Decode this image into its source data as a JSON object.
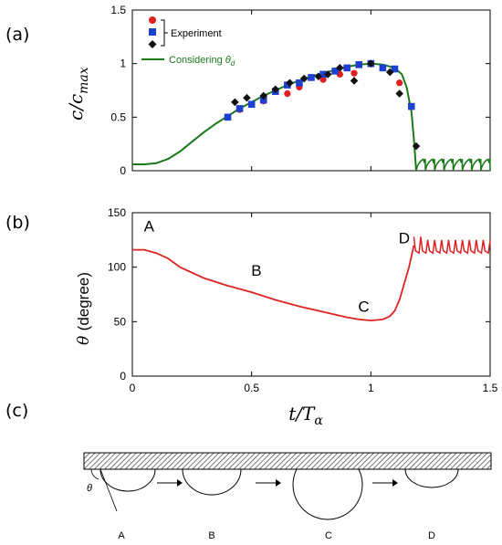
{
  "panels": {
    "a": "(a)",
    "b": "(b)",
    "c": "(c)"
  },
  "colors": {
    "experiment_red": "#e02020",
    "experiment_blue": "#1f3fd0",
    "experiment_black": "#111111",
    "theory_green": "#1a7a1a",
    "theta_red": "#dd2222"
  },
  "shared_x_label": {
    "main": "t/T",
    "sub": "α"
  },
  "chart_data": [
    {
      "type": "scatter",
      "ylabel": {
        "main": "c/c",
        "sub": "max"
      },
      "xlim": [
        0,
        1.5
      ],
      "ylim": [
        0,
        1.5
      ],
      "x_ticks": [
        0,
        0.5,
        1,
        1.5
      ],
      "y_ticks": [
        "0",
        "0.5",
        "1",
        "1.5"
      ],
      "legend_position": "top-center",
      "legend": {
        "experiment": "Experiment",
        "considering": "Considering",
        "theta_symbol": "θ",
        "theta_sub": "d"
      },
      "series": [
        {
          "name": "Experiment",
          "marker": "circle",
          "color": "#e02020",
          "x": [
            0.45,
            0.55,
            0.65,
            0.7,
            0.8,
            0.87,
            0.93,
            1.0,
            1.12
          ],
          "y": [
            0.57,
            0.65,
            0.72,
            0.78,
            0.85,
            0.9,
            0.91,
            1.0,
            0.82
          ]
        },
        {
          "name": "Experiment",
          "marker": "square",
          "color": "#1f3fd0",
          "x": [
            0.4,
            0.45,
            0.5,
            0.55,
            0.6,
            0.65,
            0.7,
            0.75,
            0.8,
            0.85,
            0.9,
            0.95,
            1.0,
            1.05,
            1.1,
            1.17
          ],
          "y": [
            0.5,
            0.58,
            0.62,
            0.66,
            0.74,
            0.8,
            0.82,
            0.87,
            0.9,
            0.93,
            0.96,
            0.99,
            1.0,
            0.96,
            0.95,
            0.6
          ]
        },
        {
          "name": "Experiment",
          "marker": "diamond",
          "color": "#111111",
          "x": [
            0.43,
            0.48,
            0.55,
            0.6,
            0.66,
            0.72,
            0.78,
            0.82,
            0.87,
            0.93,
            1.0,
            1.08,
            1.12,
            1.19
          ],
          "y": [
            0.64,
            0.68,
            0.7,
            0.76,
            0.82,
            0.86,
            0.88,
            0.9,
            0.96,
            0.84,
            1.0,
            0.92,
            0.72,
            0.23
          ]
        },
        {
          "name": "Considering θd",
          "type": "line",
          "color": "#1a7a1a",
          "x": [
            0,
            0.05,
            0.1,
            0.15,
            0.2,
            0.25,
            0.3,
            0.35,
            0.4,
            0.45,
            0.5,
            0.55,
            0.6,
            0.65,
            0.7,
            0.75,
            0.8,
            0.85,
            0.9,
            0.95,
            1.0,
            1.05,
            1.1,
            1.13,
            1.15,
            1.17,
            1.18,
            1.19
          ],
          "y": [
            0.06,
            0.06,
            0.07,
            0.11,
            0.18,
            0.27,
            0.36,
            0.44,
            0.51,
            0.58,
            0.64,
            0.7,
            0.75,
            0.8,
            0.84,
            0.88,
            0.91,
            0.94,
            0.97,
            0.99,
            1.0,
            0.99,
            0.96,
            0.9,
            0.78,
            0.55,
            0.3,
            0.0
          ],
          "oscillation": {
            "x_start": 1.19,
            "x_end": 1.5,
            "y_min": 0.0,
            "y_max": 0.11,
            "count": 8
          }
        }
      ]
    },
    {
      "type": "line",
      "ylabel": {
        "symbol": "θ",
        "text": "(degree)"
      },
      "xlim": [
        0,
        1.5
      ],
      "ylim": [
        0,
        150
      ],
      "x_ticks": [
        "0",
        "0.5",
        "1",
        "1.5"
      ],
      "y_ticks": [
        "0",
        "50",
        "100",
        "150"
      ],
      "annotations": [
        {
          "text": "A",
          "x": 0.07,
          "y": 133
        },
        {
          "text": "B",
          "x": 0.52,
          "y": 92
        },
        {
          "text": "C",
          "x": 0.97,
          "y": 59
        },
        {
          "text": "D",
          "x": 1.14,
          "y": 122
        }
      ],
      "series": [
        {
          "name": "θ",
          "color": "#dd2222",
          "x": [
            0,
            0.05,
            0.1,
            0.15,
            0.2,
            0.3,
            0.4,
            0.5,
            0.6,
            0.7,
            0.8,
            0.9,
            0.95,
            1.0,
            1.05,
            1.08,
            1.1,
            1.12,
            1.14,
            1.16,
            1.17,
            1.18
          ],
          "y": [
            116,
            116,
            113,
            108,
            100,
            90,
            83,
            77,
            70,
            64,
            59,
            54,
            52,
            51,
            52,
            55,
            60,
            70,
            85,
            100,
            110,
            120
          ],
          "oscillation": {
            "x_start": 1.18,
            "x_end": 1.5,
            "y_min": 113,
            "y_max": 128,
            "count": 11
          }
        }
      ]
    }
  ],
  "schematic": {
    "theta_label": "θ",
    "positions": [
      "A",
      "B",
      "C",
      "D"
    ]
  }
}
